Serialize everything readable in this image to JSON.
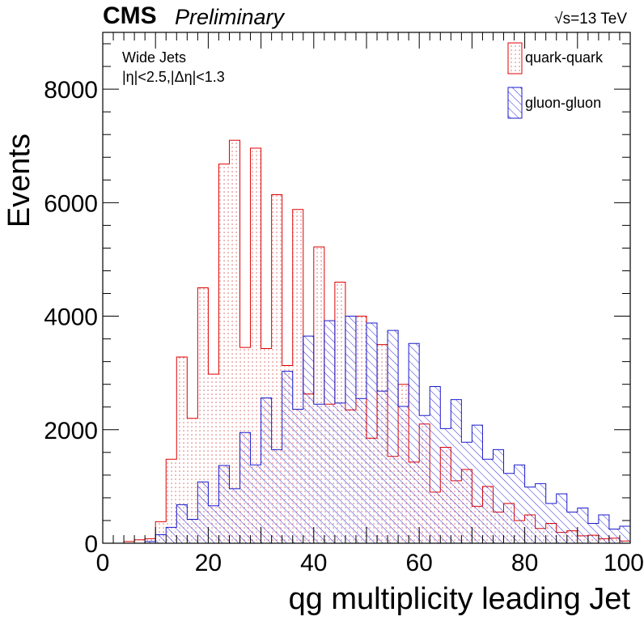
{
  "header": {
    "experiment": "CMS",
    "status": "Preliminary",
    "energy": "√s=13 TeV"
  },
  "annotations": [
    "Wide Jets",
    "|η|<2.5,|Δη|<1.3"
  ],
  "chart_data": {
    "type": "histogram",
    "xlabel": "qg multiplicity leading Jet",
    "ylabel": "Events",
    "xlim": [
      0,
      100
    ],
    "ylim": [
      0,
      9000
    ],
    "bin_width": 2,
    "x_ticks": [
      0,
      20,
      40,
      60,
      80,
      100
    ],
    "y_ticks": [
      0,
      2000,
      4000,
      6000,
      8000
    ],
    "grid": false,
    "legend_position": "top-right",
    "bin_edges_start": 0,
    "series": [
      {
        "name": "quark-quark",
        "color": "#e00000",
        "fill": "dots",
        "values": [
          0,
          0,
          30,
          60,
          80,
          380,
          1480,
          3280,
          2200,
          4500,
          2980,
          6680,
          7100,
          3450,
          6960,
          3430,
          6140,
          3130,
          5880,
          2630,
          5220,
          2450,
          4600,
          2350,
          4000,
          1850,
          3500,
          1530,
          2800,
          1430,
          2100,
          900,
          1690,
          1100,
          1300,
          650,
          1000,
          550,
          700,
          400,
          500,
          260,
          350,
          190,
          220,
          130,
          140,
          80,
          90,
          40
        ]
      },
      {
        "name": "gluon-gluon",
        "color": "#1a1acd",
        "fill": "hatch",
        "values": [
          0,
          0,
          0,
          0,
          30,
          150,
          280,
          680,
          420,
          1080,
          660,
          1370,
          960,
          1950,
          1380,
          2560,
          1650,
          3030,
          2360,
          3650,
          2450,
          3920,
          2470,
          4000,
          2550,
          3880,
          2680,
          3750,
          2410,
          3520,
          2250,
          2760,
          2020,
          2530,
          1780,
          2080,
          1480,
          1650,
          1230,
          1380,
          990,
          1050,
          700,
          870,
          550,
          620,
          350,
          500,
          250,
          300
        ]
      }
    ]
  }
}
